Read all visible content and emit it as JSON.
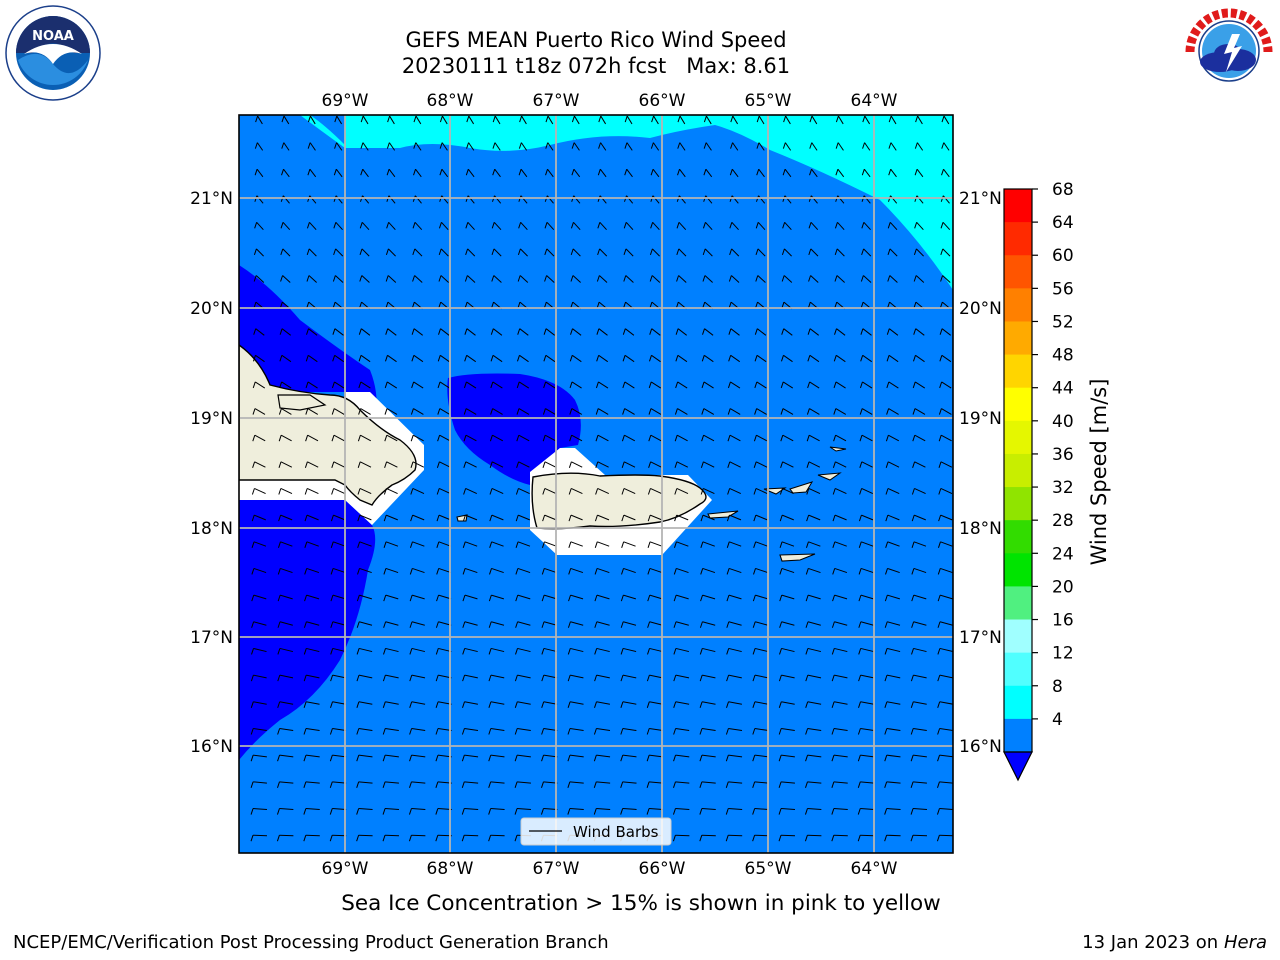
{
  "title_line1": "GEFS MEAN Puerto Rico Wind Speed",
  "title_line2": "20230111 t18z 072h fcst   Max: 8.61",
  "lon_labels": [
    "69°W",
    "68°W",
    "67°W",
    "66°W",
    "65°W",
    "64°W"
  ],
  "lat_labels": [
    "21°N",
    "20°N",
    "19°N",
    "18°N",
    "17°N",
    "16°N"
  ],
  "legend_label": "Wind Barbs",
  "colorbar": {
    "label": "Wind Speed [m/s]",
    "ticks": [
      "68",
      "64",
      "60",
      "56",
      "52",
      "48",
      "44",
      "40",
      "36",
      "32",
      "28",
      "24",
      "20",
      "16",
      "12",
      "8",
      "4"
    ],
    "colors": [
      "#ff0000",
      "#ff2a00",
      "#ff5500",
      "#ff8000",
      "#ffaa00",
      "#ffd500",
      "#ffff00",
      "#e5f700",
      "#c8ee00",
      "#90e400",
      "#32dc00",
      "#00e400",
      "#50f080",
      "#a0ffff",
      "#50ffff",
      "#00ffff",
      "#0080ff"
    ],
    "under_color": "#0000ff"
  },
  "map_colors": {
    "ocean_main": "#0080ff",
    "low_wind": "#0000ff",
    "high_wind": "#00ffff",
    "land": "#efeedc"
  },
  "note": "Sea Ice Concentration > 15% is shown in pink to yellow",
  "footer_left": "NCEP/EMC/Verification Post Processing Product Generation Branch",
  "footer_right_date": "13 Jan 2023 on ",
  "footer_right_host": "Hera",
  "logos": {
    "left": "NOAA",
    "right": "NATIONAL WEATHER SERVICE"
  }
}
